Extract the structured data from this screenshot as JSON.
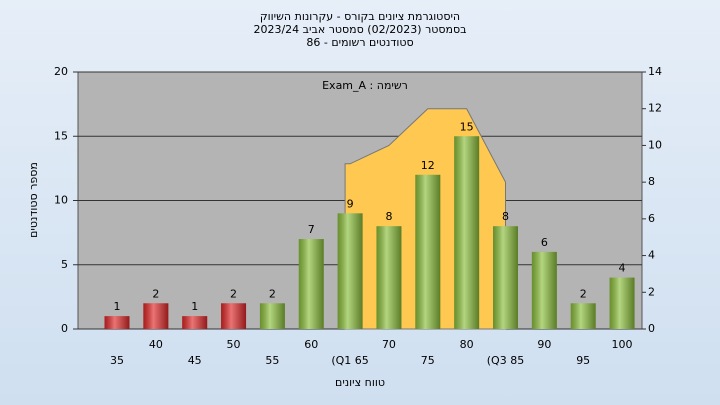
{
  "chart_data": {
    "type": "bar",
    "title": [
      "היסטוגרמת ציונים בקורס - עקרונות השיווק",
      "בסמסטר  (02/2023)  סמסטר אביב 2023/24",
      "סטודנטים רשומים - 86"
    ],
    "annotation": "רשימה : Exam_A",
    "x_label": "טווח ציונים",
    "y_label": "מספר סטודנטים",
    "categories": [
      "35",
      "40",
      "45",
      "50",
      "55",
      "60",
      "(Q1 65",
      "70",
      "75",
      "80",
      "(Q3 85",
      "90",
      "95",
      "100"
    ],
    "series": [
      {
        "type": "bar",
        "values": [
          1,
          2,
          1,
          2,
          2,
          7,
          9,
          8,
          12,
          15,
          8,
          6,
          2,
          4
        ],
        "colors": [
          "#e02828",
          "#e02828",
          "#e02828",
          "#e02828",
          "#8cbf3c",
          "#8cbf3c",
          "#8cbf3c",
          "#8cbf3c",
          "#8cbf3c",
          "#8cbf3c",
          "#8cbf3c",
          "#8cbf3c",
          "#8cbf3c",
          "#8cbf3c"
        ]
      },
      {
        "type": "area",
        "axis": "y2",
        "color": "#ffc850",
        "values": [
          null,
          null,
          null,
          null,
          null,
          null,
          9,
          10,
          12,
          12,
          8,
          null,
          null,
          null
        ]
      }
    ],
    "ylim": [
      0,
      20
    ],
    "yticks": [
      0,
      5,
      10,
      15,
      20
    ],
    "y2lim": [
      0,
      14
    ],
    "y2ticks": [
      0,
      2,
      4,
      6,
      8,
      10,
      12,
      14
    ],
    "grid": true
  }
}
